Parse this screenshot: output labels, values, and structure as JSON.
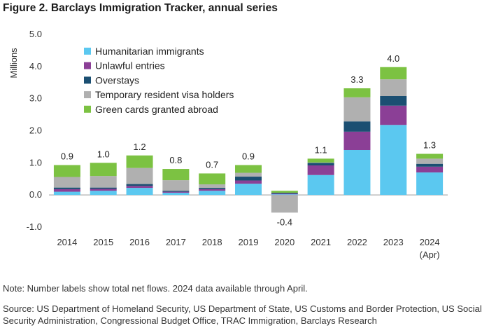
{
  "title": "Figure 2. Barclays Immigration Tracker, annual series",
  "note": "Note: Number labels show total net flows. 2024 data available through April.",
  "source": "Source: US Department of Homeland Security, US Department of State, US Customs and Border Protection, US Social Security Administration, Congressional Budget Office, TRAC Immigration, Barclays Research",
  "chart_data": {
    "type": "bar",
    "stacked": true,
    "ylabel": "Millions",
    "xlabel": "",
    "ylim": [
      -1.0,
      5.0
    ],
    "yticks": [
      "-1.0",
      "0.0",
      "1.0",
      "2.0",
      "3.0",
      "4.0",
      "5.0"
    ],
    "grid": false,
    "legend_position": "top-left",
    "categories": [
      "2014",
      "2015",
      "2016",
      "2017",
      "2018",
      "2019",
      "2020",
      "2021",
      "2022",
      "2023",
      "2024"
    ],
    "category_sublabels": [
      "",
      "",
      "",
      "",
      "",
      "",
      "",
      "",
      "",
      "",
      "(Apr)"
    ],
    "totals": [
      "0.9",
      "1.0",
      "1.2",
      "0.8",
      "0.7",
      "0.9",
      "-0.4",
      "1.1",
      "3.3",
      "4.0",
      "1.3"
    ],
    "series": [
      {
        "name": "Humanitarian immigrants",
        "color": "#5bc8f0",
        "values": [
          0.1,
          0.13,
          0.22,
          0.07,
          0.13,
          0.35,
          0.02,
          0.62,
          1.4,
          2.18,
          0.7
        ]
      },
      {
        "name": "Unlawful entries",
        "color": "#8b3f96",
        "values": [
          0.08,
          0.06,
          0.06,
          0.03,
          0.05,
          0.1,
          0.02,
          0.3,
          0.57,
          0.6,
          0.18
        ]
      },
      {
        "name": "Overstays",
        "color": "#1b4f72",
        "values": [
          0.05,
          0.04,
          0.06,
          0.03,
          0.04,
          0.12,
          0.03,
          0.08,
          0.32,
          0.3,
          0.09
        ]
      },
      {
        "name": "Temporary resident visa holders",
        "color": "#b0b0b0",
        "values": [
          0.33,
          0.36,
          0.5,
          0.33,
          0.11,
          0.12,
          -0.55,
          0.01,
          0.75,
          0.52,
          0.16
        ]
      },
      {
        "name": "Green cards granted abroad",
        "color": "#7cc242",
        "values": [
          0.37,
          0.41,
          0.39,
          0.35,
          0.34,
          0.24,
          0.06,
          0.12,
          0.28,
          0.38,
          0.15
        ]
      }
    ]
  }
}
